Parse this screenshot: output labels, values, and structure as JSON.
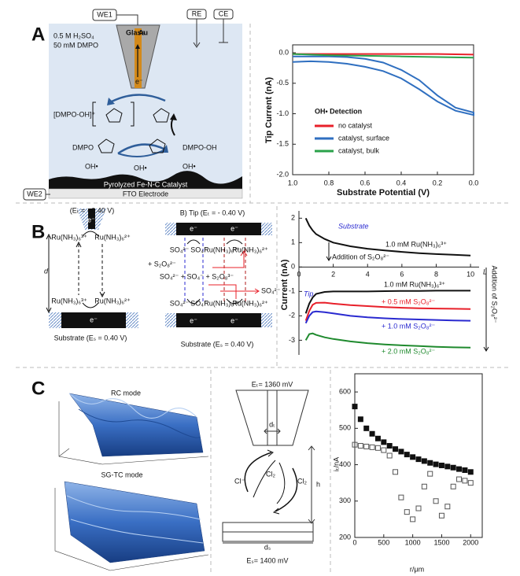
{
  "panel_labels": [
    "A",
    "B",
    "C"
  ],
  "schematic_a": {
    "we1": "WE1",
    "re": "RE",
    "ce": "CE",
    "electrolyte": [
      "0.5 M H₂SO₄",
      "50 mM DMPO"
    ],
    "glass": "Glass",
    "au": "Au",
    "electron": "e⁻",
    "adduct": "[DMPO-OH]⁺",
    "dmpo": "DMPO",
    "dmpo_oh": "DMPO-OH",
    "radicals": [
      "OH•",
      "OH•",
      "OH•"
    ],
    "catalyst": "Pyrolyzed Fe-N-C Catalyst",
    "fto": "FTO Electrode",
    "we2": "WE2"
  },
  "schematic_b": {
    "left": {
      "tip": "(Eₜ = - 0.40 V)",
      "electron": "e⁻",
      "top_species": [
        "Ru(NH₃)₆³⁺",
        "Ru(NH₃)₆²⁺"
      ],
      "distance": "d",
      "bottom_species": [
        "Ru(NH₃)₆³⁺",
        "Ru(NH₃)₆²⁺"
      ],
      "substrate_electron": "e⁻",
      "substrate": "Substrate (Eₛ = 0.40 V)"
    },
    "right": {
      "tip": "B)  Tip (Eₜ = - 0.40 V)",
      "tip_electrons": [
        "e⁻",
        "e⁻"
      ],
      "top_species": [
        "SO₄²⁻",
        "SO₄⁻",
        "Ru(NH₃)₆³⁺",
        "Ru(NH₃)₆²⁺"
      ],
      "addition": "+ S₂O₈²⁻",
      "reaction": "SO₄²⁻ + SO₄⁻ + S₂O₈³⁻",
      "product": "SO₄²⁻",
      "bottom_species": [
        "SO₄²⁻",
        "SO₄⁻",
        "Ru(NH₃)₆³⁺",
        "Ru(NH₃)₆²⁺"
      ],
      "substrate_electrons": [
        "e⁻",
        "e⁻"
      ],
      "substrate": "Substrate (Eₛ = 0.40 V)"
    }
  },
  "schematic_c": {
    "rc": "RC mode",
    "sgtc": "SG-TC mode",
    "tip_potential": "Eₜ= 1360 mV",
    "tip_diameter": "dₜ",
    "species": [
      "Cl⁻",
      "Cl₂",
      "Cl₂"
    ],
    "gap": "h",
    "substrate_diameter": "dₛ",
    "substrate_potential": "Eₛ= 1400 mV"
  },
  "chart_data": [
    {
      "type": "line",
      "legend_title": "OH• Detection",
      "xlabel": "Substrate Potential (V)",
      "ylabel": "Tip Current (nA)",
      "xlim": [
        1.0,
        0.0
      ],
      "ylim": [
        -2.0,
        0.13
      ],
      "xticks": [
        {
          "value": 1,
          "label": "1.0"
        },
        {
          "value": 0.8,
          "label": "0.8"
        },
        {
          "value": 0.6,
          "label": "0.6"
        },
        {
          "value": 0.4,
          "label": "0.4"
        },
        {
          "value": 0.2,
          "label": "0.2"
        },
        {
          "value": 0,
          "label": "0.0"
        }
      ],
      "yticks": [
        {
          "value": 0,
          "label": "0.0"
        },
        {
          "value": -0.5,
          "label": "-0.5"
        },
        {
          "value": -1,
          "label": "-1.0"
        },
        {
          "value": -1.5,
          "label": "-1.5"
        },
        {
          "value": -2,
          "label": "-2.0"
        }
      ],
      "series": [
        {
          "name": "no catalyst",
          "color": "#e8202a",
          "x": [
            1.0,
            0.8,
            0.6,
            0.4,
            0.2,
            0.0
          ],
          "values": [
            -0.02,
            -0.02,
            -0.02,
            -0.02,
            -0.02,
            -0.03
          ]
        },
        {
          "name": "catalyst, surface",
          "color": "#2f6fc0",
          "x": [
            1.0,
            0.9,
            0.8,
            0.7,
            0.6,
            0.5,
            0.4,
            0.3,
            0.2,
            0.1,
            0.0,
            0.0,
            0.1,
            0.2,
            0.3,
            0.4,
            0.5,
            0.6,
            0.7,
            0.8,
            0.9,
            1.0
          ],
          "values": [
            -0.15,
            -0.14,
            -0.15,
            -0.18,
            -0.23,
            -0.3,
            -0.42,
            -0.6,
            -0.8,
            -0.95,
            -1.02,
            -0.98,
            -0.9,
            -0.7,
            -0.45,
            -0.28,
            -0.16,
            -0.1,
            -0.07,
            -0.06,
            -0.06,
            -0.06
          ]
        },
        {
          "name": "catalyst, bulk",
          "color": "#2aa24a",
          "x": [
            1.0,
            0.8,
            0.6,
            0.4,
            0.2,
            0.0
          ],
          "values": [
            -0.02,
            -0.04,
            -0.05,
            -0.06,
            -0.07,
            -0.08
          ]
        }
      ]
    },
    {
      "type": "line",
      "ylabel": "Current (nA)",
      "xaxis_label": "L",
      "annotations": [
        "Substrate",
        "Addition of S₂O₈²⁻",
        "Tip",
        "Addition of S₂O₈²⁻"
      ],
      "xlim": [
        0,
        10.5
      ],
      "ylim": [
        -3.6,
        2.3
      ],
      "xticks": [
        0,
        2,
        4,
        6,
        8,
        10
      ],
      "yticks": [
        2,
        1,
        0,
        -1,
        -2,
        -3
      ],
      "x": [
        0.4,
        0.6,
        0.8,
        1,
        1.5,
        2,
        3,
        4,
        5,
        6,
        7,
        8,
        9,
        10
      ],
      "series": [
        {
          "name": "1.0 mM Ru(NH₃)₆³⁺",
          "color": "#111111",
          "values": [
            2.0,
            1.7,
            1.5,
            1.35,
            1.15,
            1.0,
            0.85,
            0.75,
            0.68,
            0.62,
            0.57,
            0.53,
            0.5,
            0.47
          ]
        },
        {
          "name": "1.0 mM Ru(NH₃)₆³⁺",
          "color": "#111111",
          "values": [
            -1.9,
            -1.5,
            -1.25,
            -1.1,
            -1.02,
            -1.0,
            -1.0,
            -1.0,
            -0.99,
            -0.98,
            -0.98,
            -0.97,
            -0.97,
            -0.97
          ]
        },
        {
          "name": "+ 0.5 mM S₂O₈²⁻",
          "color": "#e8202a",
          "values": [
            -2.2,
            -1.8,
            -1.55,
            -1.47,
            -1.46,
            -1.5,
            -1.56,
            -1.6,
            -1.64,
            -1.67,
            -1.69,
            -1.7,
            -1.71,
            -1.72
          ]
        },
        {
          "name": "+ 1.0 mM S₂O₈²⁻",
          "color": "#2a2ad0",
          "values": [
            -2.3,
            -2.0,
            -1.85,
            -1.82,
            -1.85,
            -1.9,
            -2.0,
            -2.06,
            -2.1,
            -2.13,
            -2.15,
            -2.17,
            -2.19,
            -2.2
          ]
        },
        {
          "name": "+ 2.0 mM S₂O₈²⁻",
          "color": "#1f8a2e",
          "values": [
            -3.0,
            -2.75,
            -2.72,
            -2.78,
            -2.88,
            -2.95,
            -3.05,
            -3.12,
            -3.17,
            -3.21,
            -3.24,
            -3.27,
            -3.29,
            -3.3
          ]
        }
      ]
    },
    {
      "type": "scatter",
      "xlabel": "r/μm",
      "ylabel": "iₜ/nA",
      "xlim": [
        0,
        2200
      ],
      "ylim": [
        200,
        650
      ],
      "xticks": [
        0,
        500,
        1000,
        1500,
        2000
      ],
      "yticks": [
        200,
        300,
        400,
        500,
        600
      ],
      "x": [
        0,
        100,
        200,
        300,
        400,
        500,
        600,
        700,
        800,
        900,
        1000,
        1100,
        1200,
        1300,
        1400,
        1500,
        1600,
        1700,
        1800,
        1900,
        2000
      ],
      "series": [
        {
          "color": "#111111",
          "marker": "filled",
          "values": [
            560,
            525,
            500,
            485,
            472,
            462,
            452,
            443,
            436,
            428,
            421,
            415,
            410,
            405,
            401,
            398,
            395,
            392,
            388,
            385,
            380
          ]
        },
        {
          "color": "#555555",
          "marker": "open",
          "values": [
            455,
            452,
            450,
            448,
            446,
            440,
            425,
            380,
            310,
            270,
            250,
            280,
            340,
            375,
            300,
            260,
            285,
            340,
            360,
            356,
            350
          ]
        }
      ]
    }
  ]
}
